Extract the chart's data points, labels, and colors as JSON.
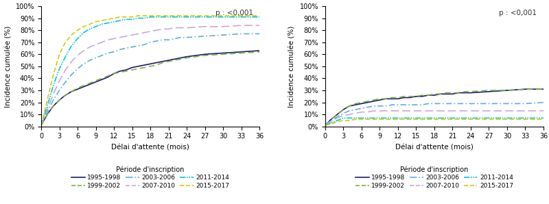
{
  "ylabel": "Incidence cumulée (%)",
  "xlabel": "Délai d'attente (mois)",
  "legend_title": "Période d'inscription",
  "pvalue": "p : <0,001",
  "xticks": [
    0,
    3,
    6,
    9,
    12,
    15,
    18,
    21,
    24,
    27,
    30,
    33,
    36
  ],
  "yticks": [
    0,
    10,
    20,
    30,
    40,
    50,
    60,
    70,
    80,
    90,
    100
  ],
  "series": [
    {
      "label": "1995-1998",
      "color": "#1a1a6e",
      "linestyle": "solid",
      "lw": 1.2
    },
    {
      "label": "1999-2002",
      "color": "#7db040",
      "linestyle": "dashed",
      "lw": 1.2
    },
    {
      "label": "2003-2006",
      "color": "#5aafdf",
      "linestyle": "dashdot",
      "lw": 1.2
    },
    {
      "label": "2007-2010",
      "color": "#c8a8d8",
      "linestyle": "longdash",
      "lw": 1.2
    },
    {
      "label": "2011-2014",
      "color": "#00c8d8",
      "linestyle": "dashdot2",
      "lw": 1.2
    },
    {
      "label": "2015-2017",
      "color": "#d8c800",
      "linestyle": "shortdash",
      "lw": 1.2
    }
  ],
  "plot1_data": [
    [
      0,
      0.01,
      1,
      0.1,
      2,
      0.17,
      3,
      0.22,
      4,
      0.26,
      5,
      0.29,
      6,
      0.31,
      7,
      0.33,
      8,
      0.35,
      9,
      0.37,
      10,
      0.39,
      11,
      0.41,
      12,
      0.44,
      13,
      0.46,
      14,
      0.47,
      15,
      0.49,
      16,
      0.5,
      17,
      0.51,
      18,
      0.52,
      19,
      0.53,
      20,
      0.54,
      21,
      0.55,
      22,
      0.56,
      23,
      0.57,
      24,
      0.58,
      27,
      0.6,
      30,
      0.61,
      33,
      0.62,
      36,
      0.63
    ],
    [
      0,
      0.01,
      1,
      0.1,
      2,
      0.17,
      3,
      0.22,
      4,
      0.26,
      5,
      0.29,
      6,
      0.32,
      7,
      0.34,
      8,
      0.36,
      9,
      0.38,
      10,
      0.4,
      11,
      0.42,
      12,
      0.44,
      13,
      0.45,
      14,
      0.46,
      15,
      0.47,
      16,
      0.48,
      17,
      0.49,
      18,
      0.5,
      19,
      0.51,
      20,
      0.53,
      21,
      0.54,
      22,
      0.55,
      23,
      0.56,
      24,
      0.57,
      27,
      0.59,
      30,
      0.6,
      33,
      0.61,
      36,
      0.62
    ],
    [
      0,
      0.01,
      1,
      0.12,
      2,
      0.22,
      3,
      0.3,
      4,
      0.37,
      5,
      0.43,
      6,
      0.48,
      7,
      0.52,
      8,
      0.55,
      9,
      0.57,
      10,
      0.59,
      11,
      0.61,
      12,
      0.62,
      13,
      0.64,
      14,
      0.65,
      15,
      0.66,
      16,
      0.67,
      17,
      0.68,
      18,
      0.7,
      19,
      0.71,
      20,
      0.72,
      21,
      0.72,
      22,
      0.73,
      23,
      0.74,
      24,
      0.74,
      27,
      0.75,
      30,
      0.76,
      33,
      0.77,
      36,
      0.77
    ],
    [
      0,
      0.01,
      1,
      0.14,
      2,
      0.27,
      3,
      0.38,
      4,
      0.47,
      5,
      0.54,
      6,
      0.59,
      7,
      0.63,
      8,
      0.66,
      9,
      0.68,
      10,
      0.7,
      11,
      0.72,
      12,
      0.73,
      13,
      0.74,
      14,
      0.75,
      15,
      0.76,
      16,
      0.77,
      17,
      0.78,
      18,
      0.79,
      19,
      0.8,
      20,
      0.81,
      21,
      0.81,
      22,
      0.82,
      23,
      0.82,
      24,
      0.82,
      27,
      0.83,
      30,
      0.83,
      33,
      0.84,
      36,
      0.84
    ],
    [
      0,
      0.01,
      1,
      0.17,
      2,
      0.34,
      3,
      0.48,
      4,
      0.58,
      5,
      0.67,
      6,
      0.73,
      7,
      0.78,
      8,
      0.81,
      9,
      0.83,
      10,
      0.85,
      11,
      0.86,
      12,
      0.87,
      13,
      0.88,
      14,
      0.89,
      15,
      0.89,
      16,
      0.9,
      17,
      0.9,
      18,
      0.91,
      19,
      0.91,
      20,
      0.91,
      21,
      0.91,
      22,
      0.91,
      23,
      0.91,
      24,
      0.91,
      27,
      0.91,
      30,
      0.91,
      33,
      0.91,
      36,
      0.91
    ],
    [
      0,
      0.01,
      1,
      0.22,
      2,
      0.43,
      3,
      0.6,
      4,
      0.7,
      5,
      0.76,
      6,
      0.8,
      7,
      0.83,
      8,
      0.85,
      9,
      0.87,
      10,
      0.88,
      11,
      0.89,
      12,
      0.9,
      13,
      0.91,
      14,
      0.91,
      15,
      0.91,
      16,
      0.92,
      17,
      0.92,
      18,
      0.92,
      19,
      0.92,
      20,
      0.92,
      21,
      0.92,
      22,
      0.92,
      23,
      0.92,
      24,
      0.92,
      27,
      0.92,
      30,
      0.92,
      33,
      0.92,
      36,
      0.92
    ]
  ],
  "plot2_data": [
    [
      0,
      0.01,
      1,
      0.06,
      2,
      0.1,
      3,
      0.14,
      4,
      0.17,
      5,
      0.18,
      6,
      0.19,
      7,
      0.2,
      8,
      0.21,
      9,
      0.22,
      10,
      0.23,
      11,
      0.23,
      12,
      0.23,
      13,
      0.24,
      14,
      0.24,
      15,
      0.25,
      16,
      0.25,
      17,
      0.26,
      18,
      0.26,
      19,
      0.27,
      20,
      0.27,
      21,
      0.27,
      22,
      0.28,
      23,
      0.28,
      24,
      0.28,
      27,
      0.29,
      30,
      0.3,
      33,
      0.31,
      36,
      0.31
    ],
    [
      0,
      0.01,
      1,
      0.06,
      2,
      0.1,
      3,
      0.14,
      4,
      0.17,
      5,
      0.19,
      6,
      0.2,
      7,
      0.21,
      8,
      0.22,
      9,
      0.23,
      10,
      0.23,
      11,
      0.24,
      12,
      0.24,
      13,
      0.25,
      14,
      0.25,
      15,
      0.25,
      16,
      0.26,
      17,
      0.26,
      18,
      0.27,
      19,
      0.27,
      20,
      0.28,
      21,
      0.28,
      22,
      0.28,
      23,
      0.29,
      24,
      0.29,
      27,
      0.3,
      30,
      0.3,
      33,
      0.31,
      36,
      0.31
    ],
    [
      0,
      0.01,
      1,
      0.05,
      2,
      0.08,
      3,
      0.11,
      4,
      0.13,
      5,
      0.14,
      6,
      0.15,
      7,
      0.16,
      8,
      0.17,
      9,
      0.17,
      10,
      0.17,
      11,
      0.18,
      12,
      0.18,
      13,
      0.18,
      14,
      0.18,
      15,
      0.18,
      16,
      0.18,
      17,
      0.19,
      18,
      0.19,
      19,
      0.19,
      20,
      0.19,
      21,
      0.19,
      22,
      0.19,
      23,
      0.19,
      24,
      0.19,
      27,
      0.19,
      30,
      0.19,
      33,
      0.19,
      36,
      0.2
    ],
    [
      0,
      0.01,
      1,
      0.04,
      2,
      0.07,
      3,
      0.09,
      4,
      0.1,
      5,
      0.11,
      6,
      0.12,
      7,
      0.12,
      8,
      0.13,
      9,
      0.13,
      10,
      0.13,
      11,
      0.13,
      12,
      0.13,
      13,
      0.13,
      14,
      0.13,
      15,
      0.13,
      16,
      0.13,
      17,
      0.13,
      18,
      0.13,
      19,
      0.13,
      20,
      0.13,
      21,
      0.13,
      22,
      0.13,
      23,
      0.13,
      24,
      0.13,
      27,
      0.13,
      30,
      0.13,
      33,
      0.13,
      36,
      0.13
    ],
    [
      0,
      0.01,
      1,
      0.03,
      2,
      0.05,
      3,
      0.07,
      4,
      0.07,
      5,
      0.07,
      6,
      0.07,
      7,
      0.07,
      8,
      0.07,
      9,
      0.07,
      10,
      0.07,
      11,
      0.07,
      12,
      0.07,
      13,
      0.07,
      14,
      0.07,
      15,
      0.07,
      16,
      0.07,
      17,
      0.07,
      18,
      0.07,
      19,
      0.07,
      20,
      0.07,
      21,
      0.07,
      22,
      0.07,
      23,
      0.07,
      24,
      0.07,
      27,
      0.07,
      30,
      0.07,
      33,
      0.07,
      36,
      0.07
    ],
    [
      0,
      0.01,
      1,
      0.02,
      2,
      0.04,
      3,
      0.05,
      4,
      0.05,
      5,
      0.06,
      6,
      0.06,
      7,
      0.06,
      8,
      0.06,
      9,
      0.06,
      10,
      0.06,
      11,
      0.06,
      12,
      0.06,
      13,
      0.06,
      14,
      0.06,
      15,
      0.06,
      16,
      0.06,
      17,
      0.06,
      18,
      0.06,
      19,
      0.06,
      20,
      0.06,
      21,
      0.06,
      22,
      0.06,
      23,
      0.06,
      24,
      0.06,
      27,
      0.06,
      30,
      0.06,
      33,
      0.06,
      36,
      0.06
    ]
  ]
}
